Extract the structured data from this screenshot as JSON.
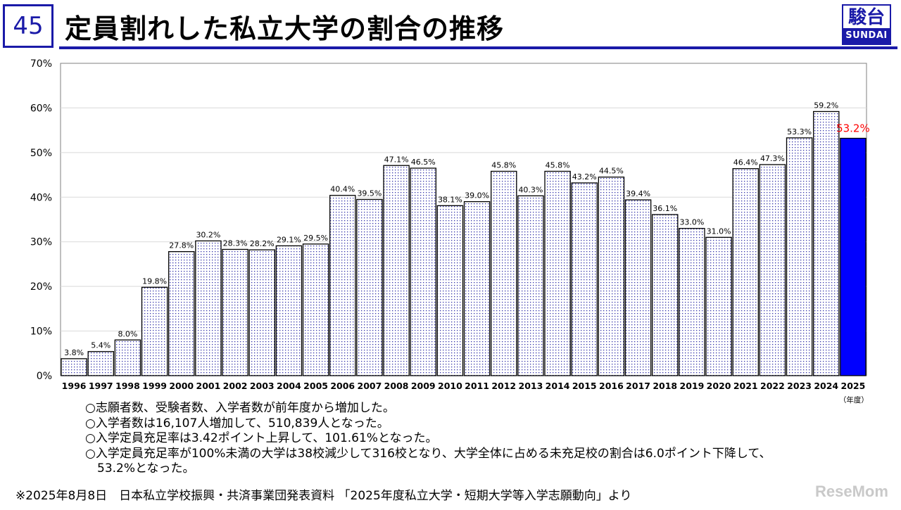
{
  "slide_number": "45",
  "title": "定員割れした私立大学の割合の推移",
  "logo": {
    "kanji": "駿台",
    "latin": "SUNDAI"
  },
  "chart_data": {
    "type": "bar",
    "categories": [
      "1996",
      "1997",
      "1998",
      "1999",
      "2000",
      "2001",
      "2002",
      "2003",
      "2004",
      "2005",
      "2006",
      "2007",
      "2008",
      "2009",
      "2010",
      "2011",
      "2012",
      "2013",
      "2014",
      "2015",
      "2016",
      "2017",
      "2018",
      "2019",
      "2020",
      "2021",
      "2022",
      "2023",
      "2024",
      "2025"
    ],
    "values": [
      3.8,
      5.4,
      8.0,
      19.8,
      27.8,
      30.2,
      28.3,
      28.2,
      29.1,
      29.5,
      40.4,
      39.5,
      47.1,
      46.5,
      38.1,
      39.0,
      45.8,
      40.3,
      45.8,
      43.2,
      44.5,
      39.4,
      36.1,
      33.0,
      31.0,
      46.4,
      47.3,
      53.3,
      59.2,
      53.2
    ],
    "value_labels": [
      "3.8%",
      "5.4%",
      "8.0%",
      "19.8%",
      "27.8%",
      "30.2%",
      "28.3%",
      "28.2%",
      "29.1%",
      "29.5%",
      "40.4%",
      "39.5%",
      "47.1%",
      "46.5%",
      "38.1%",
      "39.0%",
      "45.8%",
      "40.3%",
      "45.8%",
      "43.2%",
      "44.5%",
      "39.4%",
      "36.1%",
      "33.0%",
      "31.0%",
      "46.4%",
      "47.3%",
      "53.3%",
      "59.2%",
      "53.2%"
    ],
    "y_ticks": [
      "0%",
      "10%",
      "20%",
      "30%",
      "40%",
      "50%",
      "60%",
      "70%"
    ],
    "ylim": [
      0,
      70
    ],
    "x_unit": "（年度）",
    "highlight_index": 29,
    "colors": {
      "bar_pattern": "#3333aa",
      "highlight": "#0000ff",
      "highlight_label": "#ff0000",
      "grid": "#d9d9d9"
    }
  },
  "notes": [
    "○志願者数、受験者数、入学者数が前年度から増加した。",
    "○入学者数は16,107人増加して、510,839人となった。",
    "○入学定員充足率は3.42ポイント上昇して、101.61%となった。",
    "○入学定員充足率が100%未満の大学は38校減少して316校となり、大学全体に占める未充足校の割合は6.0ポイント下降して、",
    "　53.2%となった。"
  ],
  "source": "※2025年8月8日　日本私立学校振興・共済事業団発表資料 「2025年度私立大学・短期大学等入学志願動向」より",
  "watermark": "ReseMom"
}
